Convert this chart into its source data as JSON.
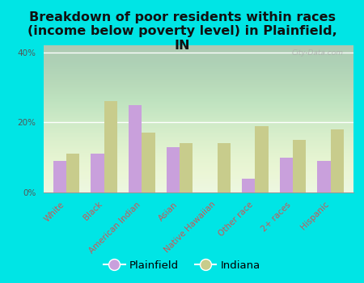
{
  "title": "Breakdown of poor residents within races\n(income below poverty level) in Plainfield,\nIN",
  "categories": [
    "White",
    "Black",
    "American Indian",
    "Asian",
    "Native Hawaiian",
    "Other race",
    "2+ races",
    "Hispanic"
  ],
  "plainfield": [
    9,
    11,
    25,
    13,
    0,
    4,
    10,
    9
  ],
  "indiana": [
    11,
    26,
    17,
    14,
    14,
    19,
    15,
    18
  ],
  "plainfield_color": "#c9a0dc",
  "indiana_color": "#c8cc8c",
  "background_outer": "#00e5e5",
  "background_plot": "#e8f5e0",
  "ylim": [
    0,
    42
  ],
  "yticks": [
    0,
    20,
    40
  ],
  "ytick_labels": [
    "0%",
    "20%",
    "40%"
  ],
  "grid_color": "#ffffff",
  "bar_width": 0.35,
  "title_fontsize": 11.5,
  "tick_fontsize": 7.5,
  "legend_fontsize": 9.5,
  "xtick_color": "#cc5555"
}
